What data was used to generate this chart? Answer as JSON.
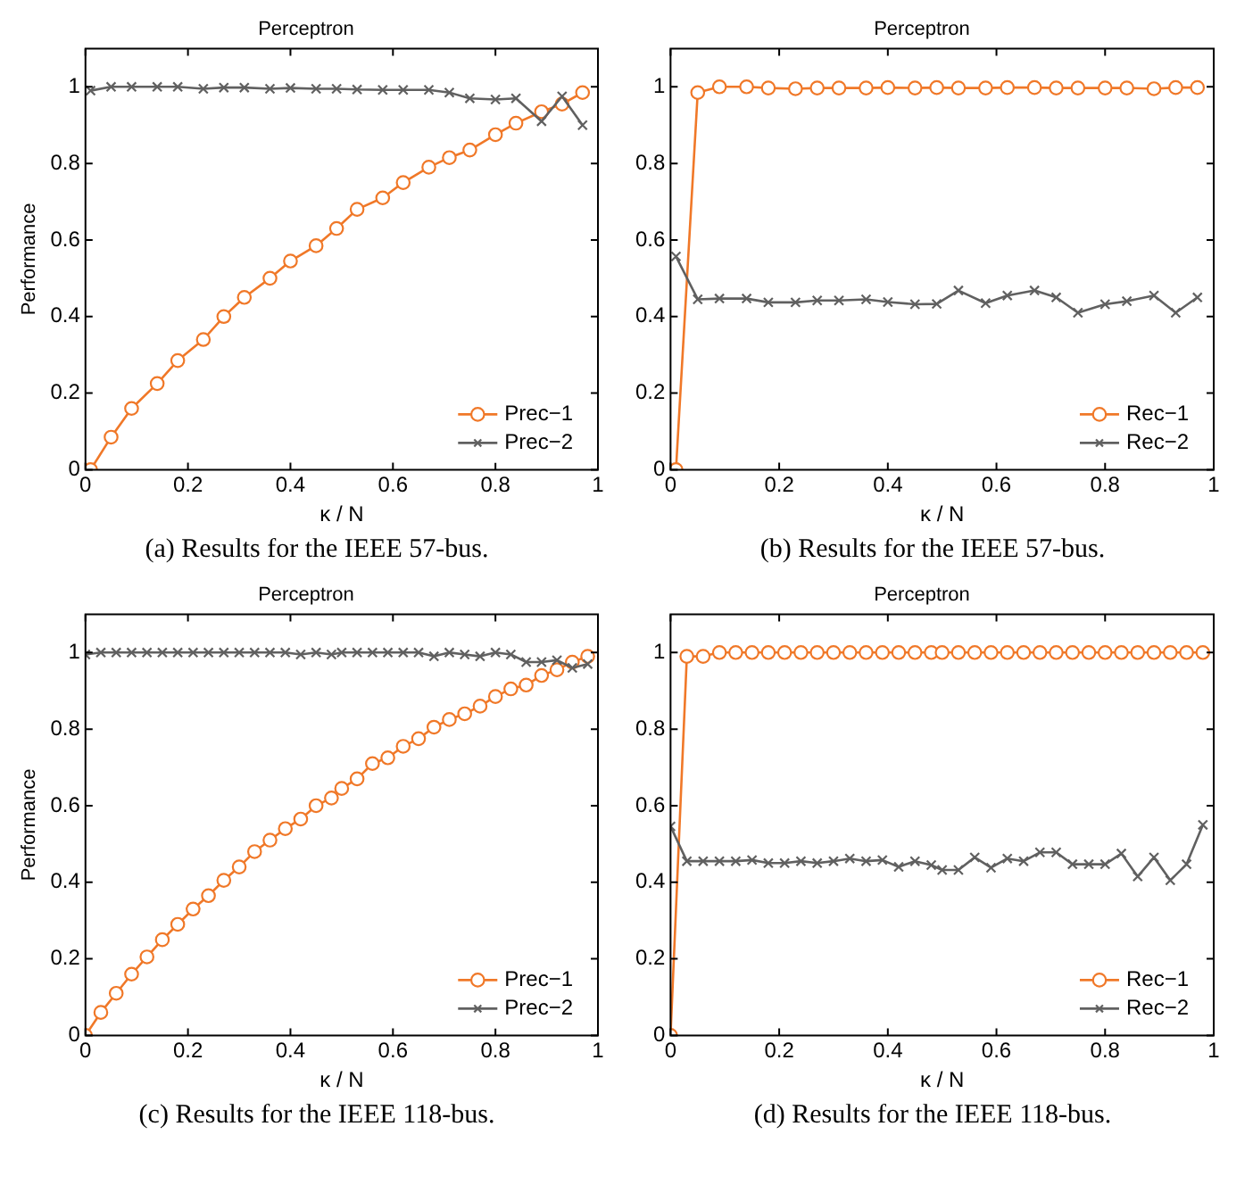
{
  "chart_data": [
    {
      "type": "line",
      "title": "Perceptron",
      "xlabel": "κ / N",
      "ylabel": "Performance",
      "annotations": [
        "(a) Results for the IEEE 57-bus."
      ],
      "xlim": [
        0,
        1
      ],
      "xticks": [
        0,
        0.2,
        0.4,
        0.6,
        0.8,
        1
      ],
      "ylim": [
        0,
        1.1
      ],
      "yticks": [
        0,
        0.2,
        0.4,
        0.6,
        0.8,
        1
      ],
      "grid": false,
      "legend": "bottom right",
      "line_style": "solid",
      "x": [
        0.01,
        0.05,
        0.09,
        0.14,
        0.18,
        0.23,
        0.27,
        0.31,
        0.36,
        0.4,
        0.45,
        0.49,
        0.53,
        0.58,
        0.62,
        0.67,
        0.71,
        0.75,
        0.8,
        0.84,
        0.89,
        0.93,
        0.97
      ],
      "series": [
        {
          "name": "Prec−1",
          "color": "#f07828",
          "marker": "circle",
          "values": [
            0,
            0.085,
            0.16,
            0.225,
            0.285,
            0.34,
            0.4,
            0.45,
            0.5,
            0.545,
            0.585,
            0.63,
            0.68,
            0.71,
            0.75,
            0.79,
            0.815,
            0.835,
            0.875,
            0.905,
            0.935,
            0.955,
            0.985
          ]
        },
        {
          "name": "Prec−2",
          "color": "#606060",
          "marker": "cross",
          "values": [
            0.99,
            1,
            1,
            1,
            1,
            0.995,
            0.998,
            0.998,
            0.995,
            0.997,
            0.995,
            0.995,
            0.993,
            0.992,
            0.992,
            0.992,
            0.985,
            0.97,
            0.967,
            0.97,
            0.91,
            0.975,
            0.9
          ]
        }
      ]
    },
    {
      "type": "line",
      "title": "Perceptron",
      "xlabel": "κ / N",
      "annotations": [
        "(b) Results for the IEEE 57-bus."
      ],
      "xlim": [
        0,
        1
      ],
      "xticks": [
        0,
        0.2,
        0.4,
        0.6,
        0.8,
        1
      ],
      "ylim": [
        0,
        1.1
      ],
      "yticks": [
        0,
        0.2,
        0.4,
        0.6,
        0.8,
        1
      ],
      "grid": false,
      "legend": "bottom right",
      "line_style": "solid",
      "x": [
        0.01,
        0.05,
        0.09,
        0.14,
        0.18,
        0.23,
        0.27,
        0.31,
        0.36,
        0.4,
        0.45,
        0.49,
        0.53,
        0.58,
        0.62,
        0.67,
        0.71,
        0.75,
        0.8,
        0.84,
        0.89,
        0.93,
        0.97
      ],
      "series": [
        {
          "name": "Rec−1",
          "color": "#f07828",
          "marker": "circle",
          "values": [
            0,
            0.985,
            1,
            1,
            0.997,
            0.995,
            0.997,
            0.997,
            0.997,
            0.998,
            0.997,
            0.998,
            0.997,
            0.997,
            0.998,
            0.998,
            0.997,
            0.997,
            0.997,
            0.997,
            0.995,
            0.998,
            0.998
          ]
        },
        {
          "name": "Rec−2",
          "color": "#606060",
          "marker": "cross",
          "values": [
            0.557,
            0.445,
            0.447,
            0.447,
            0.437,
            0.437,
            0.442,
            0.442,
            0.445,
            0.438,
            0.432,
            0.433,
            0.468,
            0.435,
            0.455,
            0.468,
            0.45,
            0.41,
            0.432,
            0.44,
            0.455,
            0.41,
            0.45
          ]
        }
      ]
    },
    {
      "type": "line",
      "title": "Perceptron",
      "xlabel": "κ / N",
      "ylabel": "Performance",
      "annotations": [
        "(c) Results for the IEEE 118-bus."
      ],
      "xlim": [
        0,
        1
      ],
      "xticks": [
        0,
        0.2,
        0.4,
        0.6,
        0.8,
        1
      ],
      "ylim": [
        0,
        1.1
      ],
      "yticks": [
        0,
        0.2,
        0.4,
        0.6,
        0.8,
        1
      ],
      "grid": false,
      "legend": "bottom right",
      "line_style": "solid",
      "x": [
        0,
        0.03,
        0.06,
        0.09,
        0.12,
        0.15,
        0.18,
        0.21,
        0.24,
        0.27,
        0.3,
        0.33,
        0.36,
        0.39,
        0.42,
        0.45,
        0.48,
        0.5,
        0.53,
        0.56,
        0.59,
        0.62,
        0.65,
        0.68,
        0.71,
        0.74,
        0.77,
        0.8,
        0.83,
        0.86,
        0.89,
        0.92,
        0.95,
        0.98
      ],
      "series": [
        {
          "name": "Prec−1",
          "color": "#f07828",
          "marker": "circle",
          "values": [
            0,
            0.06,
            0.11,
            0.16,
            0.205,
            0.25,
            0.29,
            0.33,
            0.365,
            0.405,
            0.44,
            0.48,
            0.51,
            0.54,
            0.565,
            0.6,
            0.62,
            0.645,
            0.67,
            0.71,
            0.725,
            0.755,
            0.775,
            0.805,
            0.825,
            0.84,
            0.86,
            0.885,
            0.905,
            0.915,
            0.94,
            0.955,
            0.975,
            0.99
          ]
        },
        {
          "name": "Prec−2",
          "color": "#606060",
          "marker": "cross",
          "values": [
            0.995,
            1,
            1,
            1,
            1,
            1,
            1,
            1,
            1,
            1,
            1,
            1,
            1,
            1,
            0.995,
            1,
            0.995,
            1,
            1,
            1,
            1,
            1,
            1,
            0.99,
            1,
            0.995,
            0.99,
            1,
            0.995,
            0.975,
            0.975,
            0.98,
            0.96,
            0.97
          ]
        }
      ]
    },
    {
      "type": "line",
      "title": "Perceptron",
      "xlabel": "κ / N",
      "annotations": [
        "(d) Results for the IEEE 118-bus."
      ],
      "xlim": [
        0,
        1
      ],
      "xticks": [
        0,
        0.2,
        0.4,
        0.6,
        0.8,
        1
      ],
      "ylim": [
        0,
        1.1
      ],
      "yticks": [
        0,
        0.2,
        0.4,
        0.6,
        0.8,
        1
      ],
      "grid": false,
      "legend": "bottom right",
      "line_style": "solid",
      "x": [
        0,
        0.03,
        0.06,
        0.09,
        0.12,
        0.15,
        0.18,
        0.21,
        0.24,
        0.27,
        0.3,
        0.33,
        0.36,
        0.39,
        0.42,
        0.45,
        0.48,
        0.5,
        0.53,
        0.56,
        0.59,
        0.62,
        0.65,
        0.68,
        0.71,
        0.74,
        0.77,
        0.8,
        0.83,
        0.86,
        0.89,
        0.92,
        0.95,
        0.98
      ],
      "series": [
        {
          "name": "Rec−1",
          "color": "#f07828",
          "marker": "circle",
          "values": [
            0,
            0.99,
            0.99,
            1,
            1,
            1,
            1,
            1,
            1,
            1,
            1,
            1,
            1,
            1,
            1,
            1,
            1,
            1,
            1,
            1,
            1,
            1,
            1,
            1,
            1,
            1,
            1,
            1,
            1,
            1,
            1,
            1,
            1,
            1
          ]
        },
        {
          "name": "Rec−2",
          "color": "#606060",
          "marker": "cross",
          "values": [
            0.546,
            0.455,
            0.455,
            0.455,
            0.455,
            0.458,
            0.45,
            0.45,
            0.455,
            0.45,
            0.455,
            0.462,
            0.455,
            0.458,
            0.44,
            0.455,
            0.445,
            0.432,
            0.432,
            0.465,
            0.438,
            0.462,
            0.455,
            0.478,
            0.478,
            0.447,
            0.447,
            0.447,
            0.475,
            0.415,
            0.465,
            0.405,
            0.447,
            0.55
          ]
        }
      ]
    }
  ]
}
